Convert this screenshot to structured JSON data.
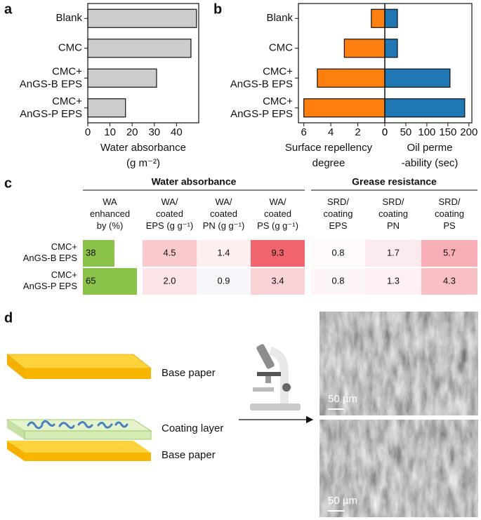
{
  "panel_labels": [
    "a",
    "b",
    "c",
    "d"
  ],
  "chart_data": [
    {
      "type": "hbar",
      "categories": [
        "Blank",
        "CMC",
        "CMC+\nAnGS-B EPS",
        "CMC+\nAnGS-P EPS"
      ],
      "values": [
        49,
        46.5,
        31,
        17
      ],
      "color": "#cccccc",
      "xlim": [
        0,
        50
      ],
      "xticks": [
        0,
        10,
        20,
        30,
        40
      ],
      "xlabel": "Water absorbance\n(g m⁻²)"
    },
    {
      "type": "diverging_bar",
      "categories": [
        "Blank",
        "CMC",
        "CMC+\nAnGS-B EPS",
        "CMC+\nAnGS-P EPS"
      ],
      "series": [
        {
          "color": "#ff7f0e",
          "values": [
            1,
            3,
            5,
            6
          ],
          "xlim": [
            0,
            6.4
          ],
          "xticks": [
            6,
            4,
            2,
            0
          ],
          "reversed": true,
          "xlabel": "Surface repellency\ndegree"
        },
        {
          "color": "#1f77b4",
          "values": [
            30,
            30,
            155,
            190
          ],
          "xlim": [
            0,
            207
          ],
          "xticks": [
            0,
            50,
            100,
            150,
            200
          ],
          "reversed": false,
          "xlabel": "Oil perme\n-ability (sec)"
        }
      ]
    }
  ],
  "table": {
    "groups": [
      {
        "title": "Water absorbance",
        "span": 4
      },
      {
        "title": "Grease resistance",
        "span": 3
      }
    ],
    "headers": [
      "WA\nenhanced\nby (%)",
      "WA/\ncoated\nEPS (g g⁻¹)",
      "WA/\ncoated\nPN (g g⁻¹)",
      "WA/\ncoated\nPS (g g⁻¹)",
      "SRD/\ncoating\nEPS",
      "SRD/\ncoating\nPN",
      "SRD/\ncoating\nPS"
    ],
    "bar_color": "#8bc34a",
    "rows": [
      {
        "label": "CMC+\nAnGS-B EPS",
        "cells": [
          38,
          "4.5",
          "1.4",
          "9.3",
          "0.8",
          "1.7",
          "5.7"
        ],
        "colors": [
          null,
          "#f9c9cc",
          "#fdeef0",
          "#f0646e",
          "#fefafb",
          "#fcebee",
          "#f7aeb4"
        ]
      },
      {
        "label": "CMC+\nAnGS-P EPS",
        "cells": [
          65,
          "2.0",
          "0.9",
          "3.4",
          "0.8",
          "1.3",
          "4.3"
        ],
        "colors": [
          null,
          "#fbe3e6",
          "#f7f7fb",
          "#f9d2d5",
          "#fdf5f7",
          "#fcf0f2",
          "#f9c0c4"
        ]
      }
    ]
  },
  "diagram": {
    "labels": [
      "Base paper",
      "Coating layer",
      "Base paper"
    ],
    "scale_bars": [
      "50 µm",
      "50 µm"
    ]
  }
}
